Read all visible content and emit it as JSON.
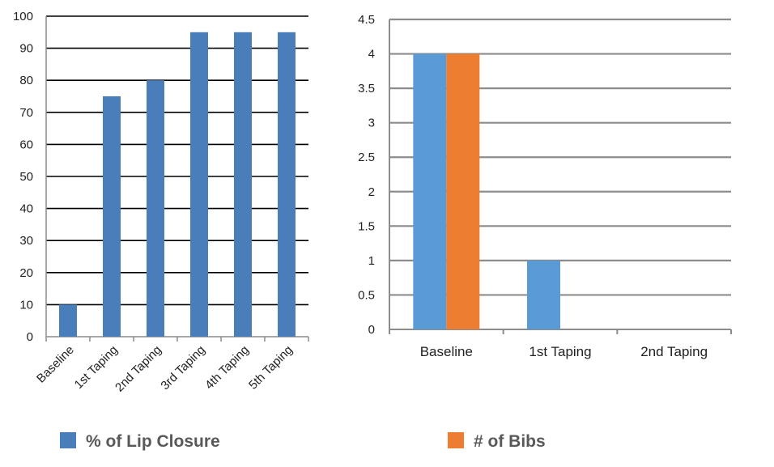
{
  "chart_data": [
    {
      "type": "bar",
      "categories": [
        "Baseline",
        "1st Taping",
        "2nd Taping",
        "3rd Taping",
        "4th Taping",
        "5th Taping"
      ],
      "series": [
        {
          "name": "% of Lip Closure",
          "values": [
            10,
            75,
            80,
            95,
            95,
            95
          ],
          "color": "#4a7ebb"
        }
      ],
      "ylim": [
        0,
        100
      ],
      "yticks": [
        "0",
        "10",
        "20",
        "30",
        "40",
        "50",
        "60",
        "70",
        "80",
        "90",
        "100"
      ],
      "grid": true,
      "legend": "bottom"
    },
    {
      "type": "bar",
      "categories": [
        "Baseline",
        "1st Taping",
        "2nd Taping"
      ],
      "series": [
        {
          "values": [
            4,
            1,
            0
          ],
          "color": "#5b9bd5"
        },
        {
          "name": "# of Bibs",
          "values": [
            4,
            0,
            0
          ],
          "color": "#ed7d31"
        }
      ],
      "ylim": [
        0,
        4.5
      ],
      "yticks": [
        "0",
        "0.5",
        "1",
        "1.5",
        "2",
        "2.5",
        "3",
        "3.5",
        "4",
        "4.5"
      ],
      "grid": true,
      "legend": "bottom"
    }
  ],
  "legend": {
    "left_label": "% of Lip Closure",
    "right_label": "# of Bibs",
    "left_color": "#4a7ebb",
    "right_color": "#ed7d31"
  }
}
